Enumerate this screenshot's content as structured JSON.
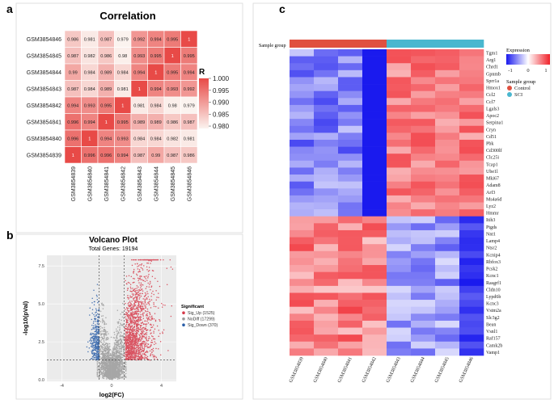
{
  "panels": {
    "a": "a",
    "b": "b",
    "c": "c"
  },
  "chart_data": [
    {
      "type": "heatmap",
      "title": "Correlation",
      "samples": [
        "GSM3854839",
        "GSM3854840",
        "GSM3854841",
        "GSM3854842",
        "GSM3854843",
        "GSM3854844",
        "GSM3854845",
        "GSM3854846"
      ],
      "row_order": [
        "GSM3854846",
        "GSM3854845",
        "GSM3854844",
        "GSM3854843",
        "GSM3854842",
        "GSM3854841",
        "GSM3854840",
        "GSM3854839"
      ],
      "matrix": [
        [
          0.986,
          0.981,
          0.987,
          0.979,
          0.992,
          0.994,
          0.995,
          1
        ],
        [
          0.987,
          0.982,
          0.986,
          0.98,
          0.993,
          0.995,
          1,
          0.995
        ],
        [
          0.99,
          0.984,
          0.989,
          0.984,
          0.994,
          1,
          0.995,
          0.994
        ],
        [
          0.987,
          0.984,
          0.989,
          0.981,
          1,
          0.994,
          0.993,
          0.992
        ],
        [
          0.994,
          0.993,
          0.995,
          1,
          0.981,
          0.984,
          0.98,
          0.979
        ],
        [
          0.996,
          0.994,
          1,
          0.995,
          0.989,
          0.989,
          0.986,
          0.987
        ],
        [
          0.996,
          1,
          0.994,
          0.993,
          0.984,
          0.984,
          0.982,
          0.981
        ],
        [
          1,
          0.996,
          0.996,
          0.994,
          0.987,
          0.99,
          0.987,
          0.986
        ]
      ],
      "legend_title": "R",
      "legend_ticks": [
        "1.000",
        "0.995",
        "0.990",
        "0.985",
        "0.980"
      ],
      "legend_range": [
        0.979,
        1.0
      ],
      "colors": {
        "low": "#fbf3ef",
        "high": "#e84a47"
      }
    },
    {
      "type": "scatter",
      "title": "Volcano Plot",
      "subtitle": "Total Genes: 19194",
      "xlabel": "log2(FC)",
      "ylabel": "-log10(pVal)",
      "xlim": [
        -5.2,
        5.2
      ],
      "ylim": [
        -0.1,
        8.2
      ],
      "x_ticks": [
        "-4",
        "0",
        "4"
      ],
      "y_ticks": [
        "0.0",
        "2.5",
        "5.0",
        "7.5"
      ],
      "thresholds": {
        "fc": [
          -1,
          1
        ],
        "p": 1.3
      },
      "legend_title": "Significant",
      "series": [
        {
          "name": "Sig_Up (1525)",
          "count": 1525,
          "color": "#d63a4a"
        },
        {
          "name": "NoDiff (17299)",
          "count": 17299,
          "color": "#9a9a9a"
        },
        {
          "name": "Sig_Down (370)",
          "count": 370,
          "color": "#2a5ea8"
        }
      ]
    },
    {
      "type": "heatmap",
      "annotation_label": "Sample group",
      "samples": [
        "GSM3854839",
        "GSM3854840",
        "GSM3854841",
        "GSM3854842",
        "GSM3854843",
        "GSM3854844",
        "GSM3854845",
        "GSM3854846"
      ],
      "sample_groups": [
        "Control",
        "Control",
        "Control",
        "Control",
        "SCI",
        "SCI",
        "SCI",
        "SCI"
      ],
      "genes": [
        "Tgm1",
        "Arg1",
        "Chrd1",
        "Gpnmb",
        "Sprr1a",
        "Hmox1",
        "Ccl2",
        "Ccl7",
        "Lgals3",
        "Apoc2",
        "Serpina1",
        "Cryn",
        "Cd51",
        "Pbk",
        "Cd300lf",
        "Clc25i",
        "Tcap1",
        "Ube1l",
        "Mki67",
        "Adam8",
        "Arf3",
        "Ms4a6d",
        "Lyz2",
        "Hmmr",
        "Itih3",
        "Ptgds",
        "Nnt1",
        "Lamp4",
        "Ntsr2",
        "Kcnip4",
        "Rbfox3",
        "Pcsk2",
        "Kcnc1",
        "Rasgrf1",
        "Cldn10",
        "Lypd6b",
        "Kcnc3",
        "Vstm2a",
        "Slc3g2",
        "Bean",
        "Vsnl1",
        "Raf157",
        "Camk2b",
        "Vamp1"
      ],
      "up_gene_count": 24,
      "legend_title": "Expression",
      "legend_ticks": [
        "-1",
        "0",
        "1"
      ],
      "group_legend_title": "Sample group",
      "groups": [
        {
          "name": "Control",
          "color": "#e0503f"
        },
        {
          "name": "SCI",
          "color": "#4ab7cf"
        }
      ],
      "colors": {
        "low": "#1a1aee",
        "mid": "#ffffff",
        "high": "#f0222a"
      }
    }
  ]
}
